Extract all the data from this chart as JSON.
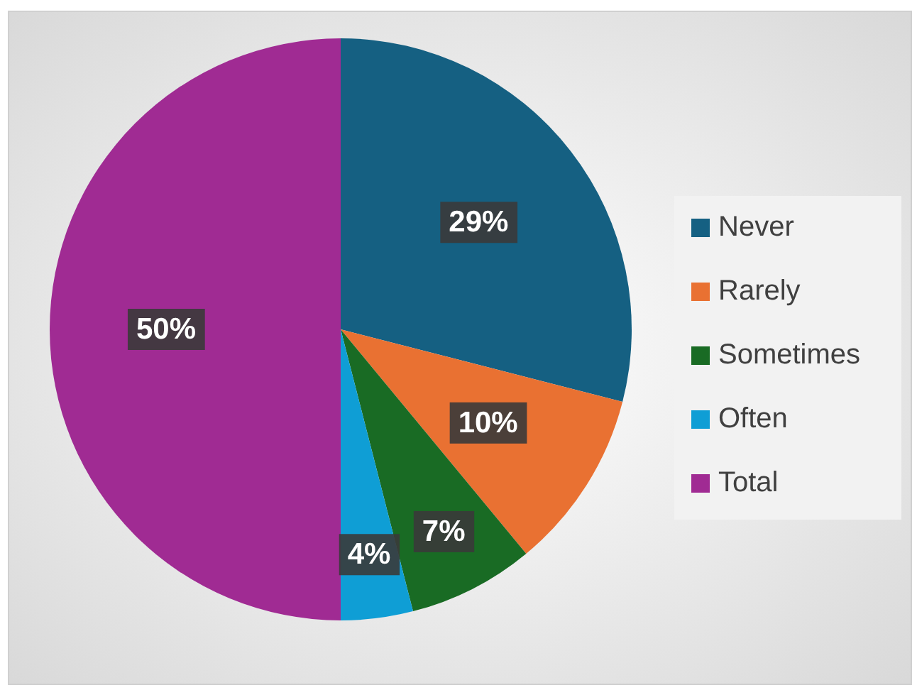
{
  "chart_data": {
    "type": "pie",
    "categories": [
      "Never",
      "Rarely",
      "Sometimes",
      "Often",
      "Total"
    ],
    "values": [
      29,
      10,
      7,
      4,
      50
    ],
    "colors": [
      "#156082",
      "#e97132",
      "#196b24",
      "#0f9ed5",
      "#a02b93"
    ],
    "value_labels": [
      "29%",
      "10%",
      "7%",
      "4%",
      "50%"
    ],
    "legend": "right"
  }
}
